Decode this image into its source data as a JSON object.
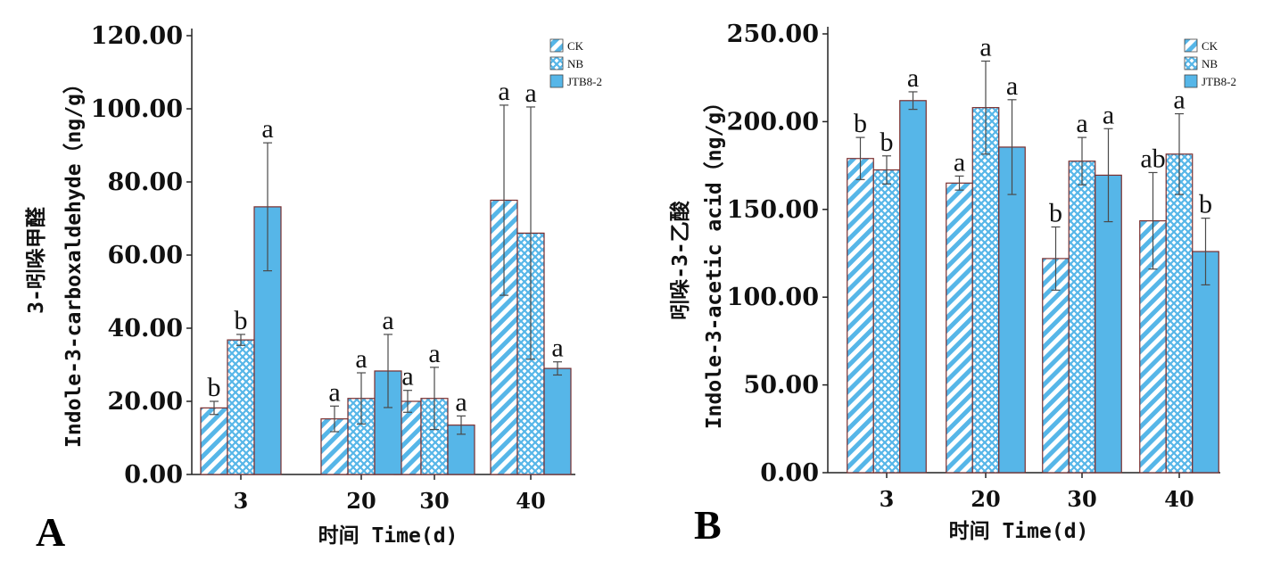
{
  "chart_data": [
    {
      "type": "bar",
      "panel_label": "A",
      "categories": [
        "3",
        "20",
        "30",
        "40"
      ],
      "xlabel": "时间 Time(d)",
      "ylabel_cn": "3-吲哚甲醛",
      "ylabel_en": "Indole-3-carboxaldehyde（ng/g）",
      "ylim": [
        0,
        120
      ],
      "yticks": [
        "0.00",
        "20.00",
        "40.00",
        "60.00",
        "80.00",
        "100.00",
        "120.00"
      ],
      "legend_position": "top-right",
      "series": [
        {
          "name": "CK",
          "values": [
            18.2,
            15.2,
            20.0,
            75.0
          ],
          "errors": [
            1.8,
            3.5,
            3.0,
            26.0
          ],
          "labels": [
            "b",
            "a",
            "a",
            "a"
          ]
        },
        {
          "name": "NB",
          "values": [
            36.8,
            20.8,
            20.8,
            66.0
          ],
          "errors": [
            1.5,
            7.0,
            8.5,
            34.5
          ],
          "labels": [
            "b",
            "a",
            "a",
            "a"
          ]
        },
        {
          "name": "JTB8-2",
          "values": [
            73.2,
            28.3,
            13.5,
            29.0
          ],
          "errors": [
            17.5,
            10.0,
            2.5,
            1.8
          ],
          "labels": [
            "a",
            "a",
            "a",
            "a"
          ]
        }
      ]
    },
    {
      "type": "bar",
      "panel_label": "B",
      "categories": [
        "3",
        "20",
        "30",
        "40"
      ],
      "xlabel": "时间 Time(d)",
      "ylabel_cn": "吲哚-3-乙酸",
      "ylabel_en": "Indole-3-acetic acid（ng/g）",
      "ylim": [
        0,
        250
      ],
      "yticks": [
        "0.00",
        "50.00",
        "100.00",
        "150.00",
        "200.00",
        "250.00"
      ],
      "legend_position": "top-right",
      "series": [
        {
          "name": "CK",
          "values": [
            179.0,
            165.0,
            122.0,
            143.5
          ],
          "errors": [
            12.0,
            4.0,
            18.0,
            27.5
          ],
          "labels": [
            "b",
            "a",
            "b",
            "ab"
          ]
        },
        {
          "name": "NB",
          "values": [
            172.5,
            208.0,
            177.5,
            181.5
          ],
          "errors": [
            8.0,
            26.5,
            13.5,
            23.0
          ],
          "labels": [
            "b",
            "a",
            "a",
            "a"
          ]
        },
        {
          "name": "JTB8-2",
          "values": [
            212.0,
            185.5,
            169.5,
            126.0
          ],
          "errors": [
            5.0,
            27.0,
            26.5,
            19.0
          ],
          "labels": [
            "a",
            "a",
            "a",
            "b"
          ]
        }
      ]
    }
  ],
  "colors": {
    "fill": "#56B6E8",
    "hatch_background": "#ffffff",
    "bar_outline": "#7a2e2e",
    "axis": "#222222"
  }
}
